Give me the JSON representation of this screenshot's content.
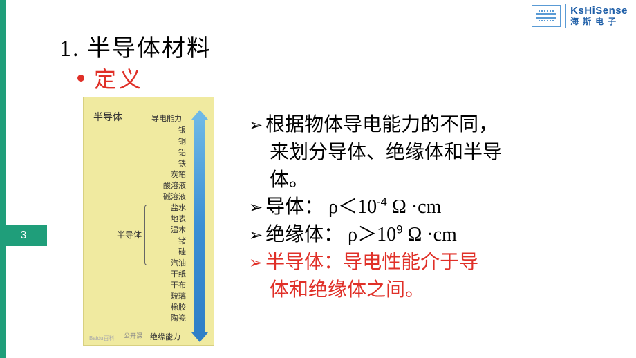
{
  "logo": {
    "english": "KsHiSense",
    "chinese": "海斯电子",
    "color": "#1f5fa8",
    "icon_color": "#5a9bd5"
  },
  "title": "1. 半导体材料",
  "subtitle": "定义",
  "subtitle_color": "#e03028",
  "page_number": "3",
  "accent_color": "#1f9e7a",
  "diagram": {
    "bg_color": "#f0eaa0",
    "semi_title": "半导体",
    "top_label": "导电能力",
    "materials": [
      "银",
      "铜",
      "铝",
      "铁",
      "炭笔",
      "酸溶液",
      "碱溶液",
      "盐水",
      "地表",
      "湿木",
      "锗",
      "硅",
      "汽油",
      "干纸",
      "干布",
      "玻璃",
      "橡胶",
      "陶瓷"
    ],
    "mid_label": "半导体",
    "bottom_label": "绝缘能力",
    "gongkai": "公开课",
    "watermark": "Baidu百科",
    "arrow_top_color": "#6eb8e6",
    "arrow_bottom_color": "#2f7fc7"
  },
  "bullets": {
    "b1_l1": "根据物体导电能力的不同，",
    "b1_l2": "来划分导体、绝缘体和半导",
    "b1_l3": "体。",
    "b2": "导体： ρ＜10",
    "b2_sup": "-4",
    "b2_tail": "  Ω ·cm",
    "b3": "绝缘体：  ρ＞10",
    "b3_sup": "9",
    "b3_tail": " Ω ·cm",
    "b4_l1": "半导体：导电性能介于导",
    "b4_l2": "体和绝缘体之间。"
  },
  "colors": {
    "black": "#000000",
    "red": "#e03028"
  }
}
